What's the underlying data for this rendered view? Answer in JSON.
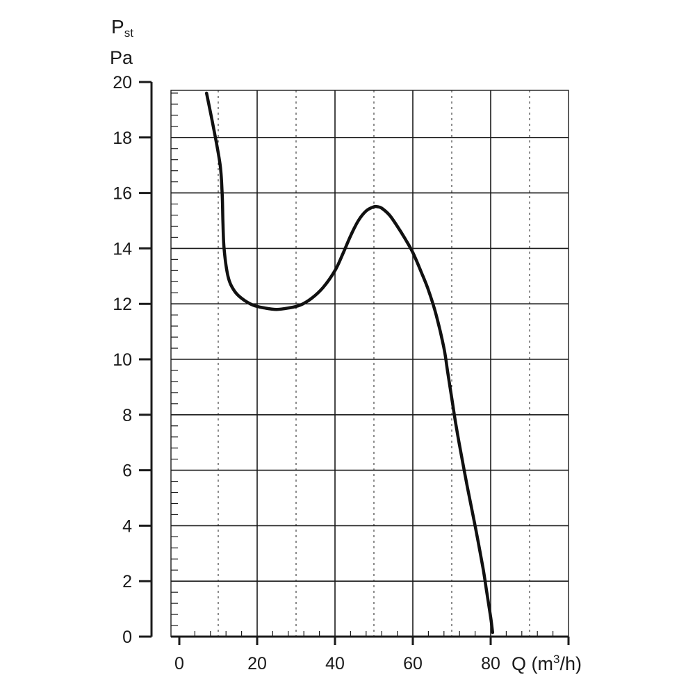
{
  "chart_data": {
    "type": "line",
    "ylabel_symbol": "P",
    "ylabel_subscript": "st",
    "ylabel_unit": "Pa",
    "xlabel_prefix": "Q (m",
    "xlabel_sup": "3",
    "xlabel_suffix": "/h)",
    "xlim": [
      0,
      100
    ],
    "ylim": [
      0,
      20
    ],
    "x_ticks": [
      "0",
      "20",
      "40",
      "60",
      "80"
    ],
    "y_ticks": [
      "0",
      "2",
      "4",
      "6",
      "8",
      "10",
      "12",
      "14",
      "16",
      "18",
      "20"
    ],
    "grid": true,
    "series": [
      {
        "x": [
          7.0,
          9.0,
          10.5,
          11.0,
          11.2,
          11.5,
          12.5,
          14.0,
          16.0,
          19.0,
          22.0,
          25.0,
          28.0,
          31.0,
          34.0,
          37.0,
          40.0,
          42.0,
          44.0,
          46.0,
          48.0,
          50.0,
          51.0,
          52.0,
          54.0,
          56.0,
          58.0,
          60.0,
          62.0,
          64.0,
          66.0,
          68.0,
          69.0,
          70.0,
          71.0,
          72.0,
          74.0,
          76.0,
          78.0,
          79.0,
          80.0,
          80.5
        ],
        "y": [
          19.6,
          18.2,
          17.0,
          16.0,
          15.0,
          14.0,
          13.0,
          12.5,
          12.2,
          11.95,
          11.85,
          11.8,
          11.85,
          11.95,
          12.2,
          12.6,
          13.2,
          13.8,
          14.45,
          15.0,
          15.35,
          15.5,
          15.5,
          15.45,
          15.2,
          14.8,
          14.35,
          13.85,
          13.2,
          12.5,
          11.6,
          10.4,
          9.5,
          8.6,
          7.7,
          6.9,
          5.4,
          4.0,
          2.5,
          1.6,
          0.7,
          0.15
        ]
      }
    ]
  }
}
